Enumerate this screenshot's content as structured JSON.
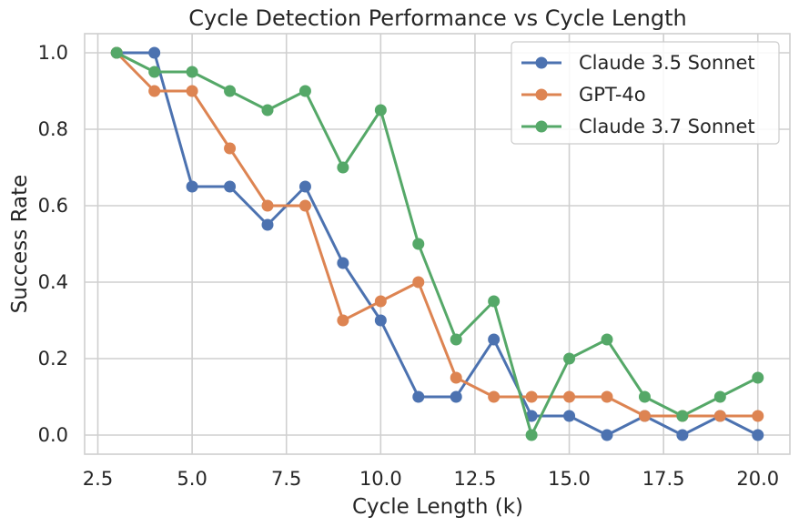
{
  "chart_data": {
    "type": "line",
    "title": "Cycle Detection Performance vs Cycle Length",
    "xlabel": "Cycle Length (k)",
    "ylabel": "Success Rate",
    "xlim": [
      2.15,
      20.85
    ],
    "ylim": [
      -0.05,
      1.05
    ],
    "xticks": [
      2.5,
      5.0,
      7.5,
      10.0,
      12.5,
      15.0,
      17.5,
      20.0
    ],
    "xtick_labels": [
      "2.5",
      "5.0",
      "7.5",
      "10.0",
      "12.5",
      "15.0",
      "17.5",
      "20.0"
    ],
    "yticks": [
      0.0,
      0.2,
      0.4,
      0.6,
      0.8,
      1.0
    ],
    "ytick_labels": [
      "0.0",
      "0.2",
      "0.4",
      "0.6",
      "0.8",
      "1.0"
    ],
    "grid": true,
    "legend_position": "top-right",
    "x": [
      3,
      4,
      5,
      6,
      7,
      8,
      9,
      10,
      11,
      12,
      13,
      14,
      15,
      16,
      17,
      18,
      19,
      20
    ],
    "series": [
      {
        "name": "Claude 3.5 Sonnet",
        "color": "#4C72B0",
        "values": [
          1.0,
          1.0,
          0.65,
          0.65,
          0.55,
          0.65,
          0.45,
          0.3,
          0.1,
          0.1,
          0.25,
          0.05,
          0.05,
          0.0,
          0.05,
          0.0,
          0.05,
          0.0
        ]
      },
      {
        "name": "GPT-4o",
        "color": "#DD8452",
        "values": [
          1.0,
          0.9,
          0.9,
          0.75,
          0.6,
          0.6,
          0.3,
          0.35,
          0.4,
          0.15,
          0.1,
          0.1,
          0.1,
          0.1,
          0.05,
          0.05,
          0.05,
          0.05
        ]
      },
      {
        "name": "Claude 3.7 Sonnet",
        "color": "#55A868",
        "values": [
          1.0,
          0.95,
          0.95,
          0.9,
          0.85,
          0.9,
          0.7,
          0.85,
          0.5,
          0.25,
          0.35,
          0.0,
          0.2,
          0.25,
          0.1,
          0.05,
          0.1,
          0.15
        ]
      }
    ]
  }
}
